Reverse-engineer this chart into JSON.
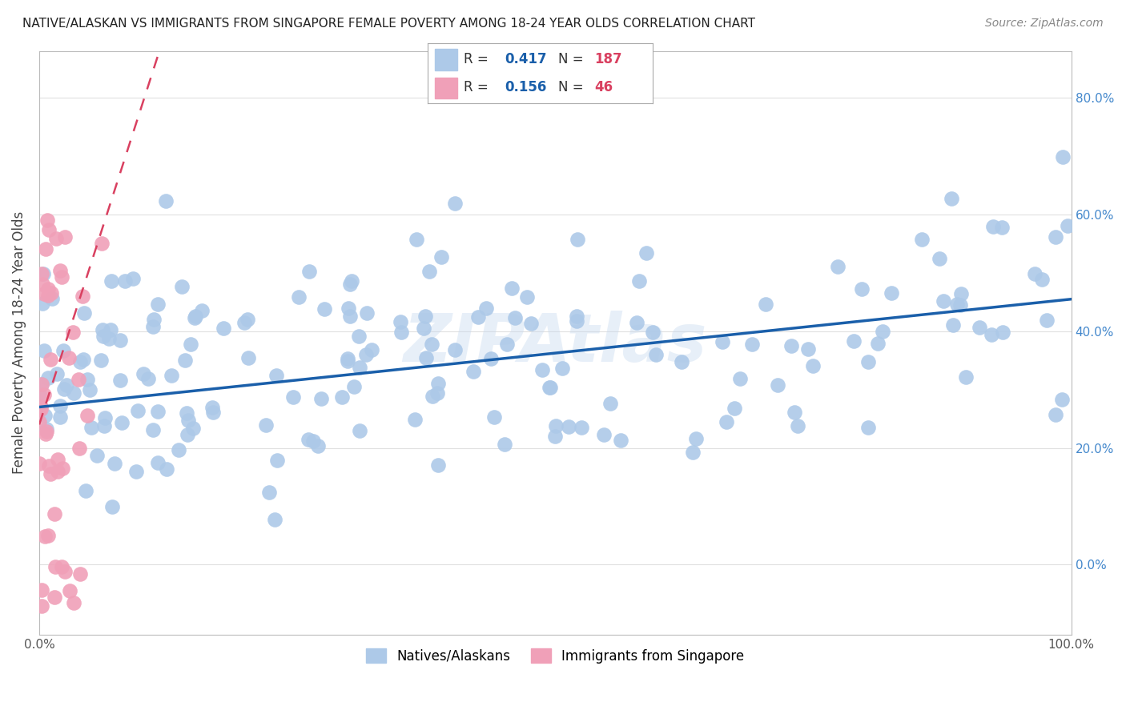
{
  "title": "NATIVE/ALASKAN VS IMMIGRANTS FROM SINGAPORE FEMALE POVERTY AMONG 18-24 YEAR OLDS CORRELATION CHART",
  "source": "Source: ZipAtlas.com",
  "ylabel": "Female Poverty Among 18-24 Year Olds",
  "xlim": [
    0,
    1.0
  ],
  "ylim": [
    -0.12,
    0.88
  ],
  "yticks": [
    0.0,
    0.2,
    0.4,
    0.6,
    0.8
  ],
  "ytick_labels_right": [
    "0.0%",
    "20.0%",
    "40.0%",
    "60.0%",
    "80.0%"
  ],
  "xticks": [
    0.0,
    1.0
  ],
  "xtick_labels": [
    "0.0%",
    "100.0%"
  ],
  "blue_color": "#adc9e8",
  "pink_color": "#f0a0b8",
  "blue_line_color": "#1a5faa",
  "pink_line_color": "#d94060",
  "blue_R": 0.417,
  "blue_N": 187,
  "pink_R": 0.156,
  "pink_N": 46,
  "watermark_text": "ZIPAtlas",
  "background_color": "#ffffff",
  "grid_color": "#e0e0e0",
  "right_tick_color": "#4488cc",
  "legend_R_color": "#1a5faa",
  "legend_N_color": "#d94060",
  "title_fontsize": 11,
  "source_fontsize": 10
}
